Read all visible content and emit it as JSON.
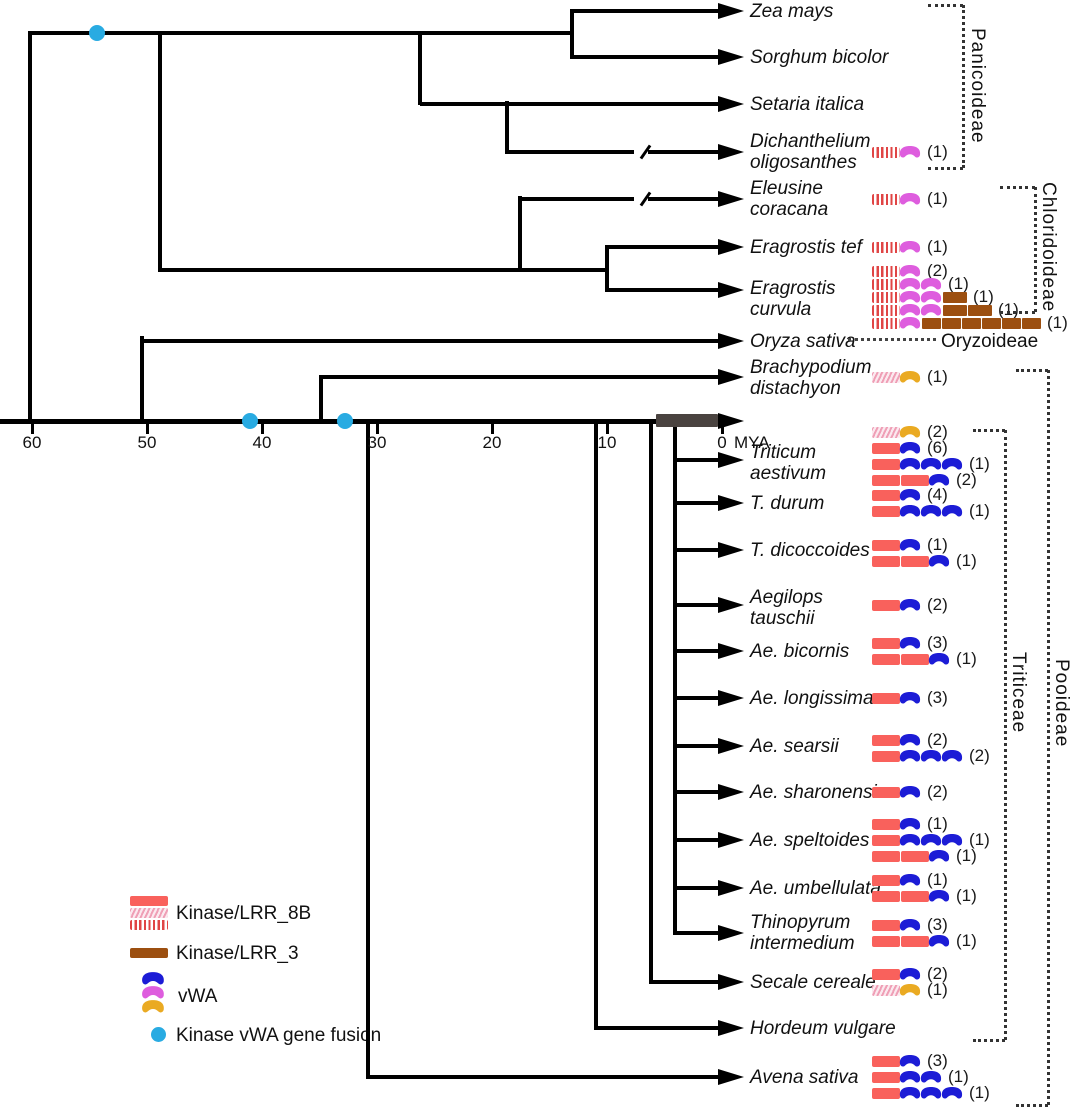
{
  "colors": {
    "kinase_solid": "#f9615c",
    "kinase_hatch": "#ef9fb6",
    "kinase_stripe": "#e04545",
    "lrr3_brown": "#9c4f10",
    "vwa_blue": "#1c1cd6",
    "vwa_magenta": "#de5dde",
    "vwa_yellow": "#eaaa22",
    "fusion_cyan": "#29abe2",
    "axis_bar_dark": "#4a4340",
    "branch_black": "#000000"
  },
  "axis": {
    "ticks": [
      "60",
      "50",
      "40",
      "30",
      "20",
      "10",
      "0"
    ],
    "unit": "MYA"
  },
  "clades": [
    {
      "name": "Panicoideae"
    },
    {
      "name": "Chloridoideae"
    },
    {
      "name": "Oryzoideae"
    },
    {
      "name": "Triticeae"
    },
    {
      "name": "Pooideae"
    }
  ],
  "legend": {
    "items": [
      {
        "id": "kinase-lrr-8b",
        "label": "Kinase/LRR_8B",
        "swatches": [
          "solid",
          "hatched",
          "striped"
        ]
      },
      {
        "id": "kinase-lrr-3",
        "label": "Kinase/LRR_3",
        "swatches": [
          "brown"
        ]
      },
      {
        "id": "vwa",
        "label": "vWA",
        "swatches": [
          "blue",
          "magenta",
          "yellow"
        ]
      },
      {
        "id": "kinase-vwa-gene-fusion",
        "label": "Kinase vWA gene fusion",
        "swatches": [
          "cyan-dot"
        ]
      }
    ]
  },
  "species": [
    {
      "id": "zea-mays",
      "name": [
        "Zea mays"
      ],
      "rows": []
    },
    {
      "id": "sorghum-bicolor",
      "name": [
        "Sorghum bicolor"
      ],
      "rows": []
    },
    {
      "id": "setaria-italica",
      "name": [
        "Setaria italica"
      ],
      "rows": []
    },
    {
      "id": "dichanthelium-oligosanthes",
      "name": [
        "Dichanthelium",
        "oligosanthes"
      ],
      "rows": [
        {
          "kinases": [
            "striped"
          ],
          "vwa": {
            "color": "magenta",
            "count": 1
          },
          "lrr3": 0,
          "label": "(1)"
        }
      ]
    },
    {
      "id": "eleusine-coracana",
      "name": [
        "Eleusine",
        "coracana"
      ],
      "rows": [
        {
          "kinases": [
            "striped"
          ],
          "vwa": {
            "color": "magenta",
            "count": 1
          },
          "lrr3": 0,
          "label": "(1)"
        }
      ]
    },
    {
      "id": "eragrostis-tef",
      "name": [
        "Eragrostis tef"
      ],
      "rows": [
        {
          "kinases": [
            "striped"
          ],
          "vwa": {
            "color": "magenta",
            "count": 1
          },
          "lrr3": 0,
          "label": "(1)"
        }
      ]
    },
    {
      "id": "eragrostis-curvula",
      "name": [
        "Eragrostis",
        "curvula"
      ],
      "rows": [
        {
          "kinases": [
            "striped"
          ],
          "vwa": {
            "color": "magenta",
            "count": 1
          },
          "lrr3": 0,
          "label": "(2)"
        },
        {
          "kinases": [
            "striped"
          ],
          "vwa": {
            "color": "magenta",
            "count": 2
          },
          "lrr3": 0,
          "label": "(1)"
        },
        {
          "kinases": [
            "striped"
          ],
          "vwa": {
            "color": "magenta",
            "count": 2
          },
          "lrr3": 1,
          "label": "(1)"
        },
        {
          "kinases": [
            "striped"
          ],
          "vwa": {
            "color": "magenta",
            "count": 2
          },
          "lrr3": 2,
          "label": "(1)"
        },
        {
          "kinases": [
            "striped"
          ],
          "vwa": {
            "color": "magenta",
            "count": 1
          },
          "lrr3": 6,
          "label": "(1)"
        }
      ]
    },
    {
      "id": "oryza-sativa",
      "name": [
        "Oryza sativa"
      ],
      "rows": [],
      "leader_clade": "Oryzoideae"
    },
    {
      "id": "brachypodium-distachyon",
      "name": [
        "Brachypodium",
        "distachyon"
      ],
      "rows": [
        {
          "kinases": [
            "hatched"
          ],
          "vwa": {
            "color": "yellow",
            "count": 1
          },
          "lrr3": 0,
          "label": "(1)"
        }
      ]
    },
    {
      "id": "triticum-aestivum",
      "name": [
        "Triticum",
        "aestivum"
      ],
      "rows": [
        {
          "kinases": [
            "hatched"
          ],
          "vwa": {
            "color": "yellow",
            "count": 1
          },
          "lrr3": 0,
          "label": "(2)"
        },
        {
          "kinases": [
            "solid"
          ],
          "vwa": {
            "color": "blue",
            "count": 1
          },
          "lrr3": 0,
          "label": "(6)"
        },
        {
          "kinases": [
            "solid"
          ],
          "vwa": {
            "color": "blue",
            "count": 3
          },
          "lrr3": 0,
          "label": "(1)"
        },
        {
          "kinases": [
            "solid",
            "solid"
          ],
          "vwa": {
            "color": "blue",
            "count": 1
          },
          "lrr3": 0,
          "label": "(2)"
        }
      ]
    },
    {
      "id": "t-durum",
      "name": [
        "T. durum"
      ],
      "rows": [
        {
          "kinases": [
            "solid"
          ],
          "vwa": {
            "color": "blue",
            "count": 1
          },
          "lrr3": 0,
          "label": "(4)"
        },
        {
          "kinases": [
            "solid"
          ],
          "vwa": {
            "color": "blue",
            "count": 3
          },
          "lrr3": 0,
          "label": "(1)"
        }
      ]
    },
    {
      "id": "t-dicoccoides",
      "name": [
        "T. dicoccoides"
      ],
      "rows": [
        {
          "kinases": [
            "solid"
          ],
          "vwa": {
            "color": "blue",
            "count": 1
          },
          "lrr3": 0,
          "label": "(1)"
        },
        {
          "kinases": [
            "solid",
            "solid"
          ],
          "vwa": {
            "color": "blue",
            "count": 1
          },
          "lrr3": 0,
          "label": "(1)"
        }
      ]
    },
    {
      "id": "aegilops-tauschii",
      "name": [
        "Aegilops",
        "tauschii"
      ],
      "rows": [
        {
          "kinases": [
            "solid"
          ],
          "vwa": {
            "color": "blue",
            "count": 1
          },
          "lrr3": 0,
          "label": "(2)"
        }
      ]
    },
    {
      "id": "ae-bicornis",
      "name": [
        "Ae. bicornis"
      ],
      "rows": [
        {
          "kinases": [
            "solid"
          ],
          "vwa": {
            "color": "blue",
            "count": 1
          },
          "lrr3": 0,
          "label": "(3)"
        },
        {
          "kinases": [
            "solid",
            "solid"
          ],
          "vwa": {
            "color": "blue",
            "count": 1
          },
          "lrr3": 0,
          "label": "(1)"
        }
      ]
    },
    {
      "id": "ae-longissima",
      "name": [
        "Ae. longissima"
      ],
      "rows": [
        {
          "kinases": [
            "solid"
          ],
          "vwa": {
            "color": "blue",
            "count": 1
          },
          "lrr3": 0,
          "label": "(3)"
        }
      ]
    },
    {
      "id": "ae-searsii",
      "name": [
        "Ae. searsii"
      ],
      "rows": [
        {
          "kinases": [
            "solid"
          ],
          "vwa": {
            "color": "blue",
            "count": 1
          },
          "lrr3": 0,
          "label": "(2)"
        },
        {
          "kinases": [
            "solid"
          ],
          "vwa": {
            "color": "blue",
            "count": 3
          },
          "lrr3": 0,
          "label": "(2)"
        }
      ]
    },
    {
      "id": "ae-sharonensis",
      "name": [
        "Ae. sharonensis"
      ],
      "rows": [
        {
          "kinases": [
            "solid"
          ],
          "vwa": {
            "color": "blue",
            "count": 1
          },
          "lrr3": 0,
          "label": "(2)"
        }
      ]
    },
    {
      "id": "ae-speltoides",
      "name": [
        "Ae. speltoides"
      ],
      "rows": [
        {
          "kinases": [
            "solid"
          ],
          "vwa": {
            "color": "blue",
            "count": 1
          },
          "lrr3": 0,
          "label": "(1)"
        },
        {
          "kinases": [
            "solid"
          ],
          "vwa": {
            "color": "blue",
            "count": 3
          },
          "lrr3": 0,
          "label": "(1)"
        },
        {
          "kinases": [
            "solid",
            "solid"
          ],
          "vwa": {
            "color": "blue",
            "count": 1
          },
          "lrr3": 0,
          "label": "(1)"
        }
      ]
    },
    {
      "id": "ae-umbellulata",
      "name": [
        "Ae. umbellulata"
      ],
      "rows": [
        {
          "kinases": [
            "solid"
          ],
          "vwa": {
            "color": "blue",
            "count": 1
          },
          "lrr3": 0,
          "label": "(1)"
        },
        {
          "kinases": [
            "solid",
            "solid"
          ],
          "vwa": {
            "color": "blue",
            "count": 1
          },
          "lrr3": 0,
          "label": "(1)"
        }
      ]
    },
    {
      "id": "thinopyrum-intermedium",
      "name": [
        "Thinopyrum",
        "intermedium"
      ],
      "rows": [
        {
          "kinases": [
            "solid"
          ],
          "vwa": {
            "color": "blue",
            "count": 1
          },
          "lrr3": 0,
          "label": "(3)"
        },
        {
          "kinases": [
            "solid",
            "solid"
          ],
          "vwa": {
            "color": "blue",
            "count": 1
          },
          "lrr3": 0,
          "label": "(1)"
        }
      ]
    },
    {
      "id": "secale-cereale",
      "name": [
        "Secale cereale"
      ],
      "rows": [
        {
          "kinases": [
            "solid"
          ],
          "vwa": {
            "color": "blue",
            "count": 1
          },
          "lrr3": 0,
          "label": "(2)"
        },
        {
          "kinases": [
            "hatched"
          ],
          "vwa": {
            "color": "yellow",
            "count": 1
          },
          "lrr3": 0,
          "label": "(1)"
        }
      ]
    },
    {
      "id": "hordeum-vulgare",
      "name": [
        "Hordeum vulgare"
      ],
      "rows": []
    },
    {
      "id": "avena-sativa",
      "name": [
        "Avena sativa"
      ],
      "rows": [
        {
          "kinases": [
            "solid"
          ],
          "vwa": {
            "color": "blue",
            "count": 1
          },
          "lrr3": 0,
          "label": "(3)"
        },
        {
          "kinases": [
            "solid"
          ],
          "vwa": {
            "color": "blue",
            "count": 2
          },
          "lrr3": 0,
          "label": "(1)"
        },
        {
          "kinases": [
            "solid"
          ],
          "vwa": {
            "color": "blue",
            "count": 3
          },
          "lrr3": 0,
          "label": "(1)"
        }
      ]
    }
  ]
}
